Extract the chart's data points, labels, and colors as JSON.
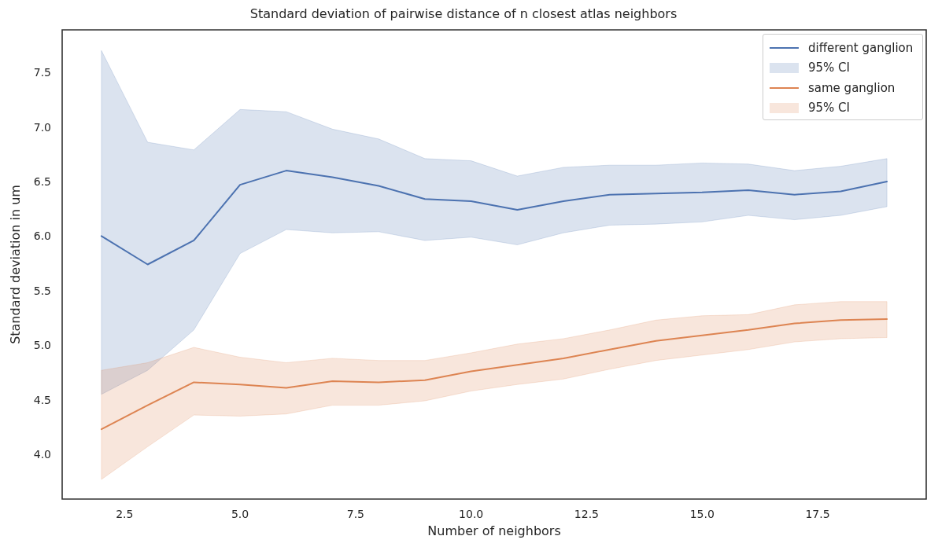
{
  "chart_data": {
    "type": "line",
    "title": "Standard deviation of pairwise distance of n closest atlas neighbors",
    "xlabel": "Number of neighbors",
    "ylabel": "Standard deviation in um",
    "annotations": [
      "95% CI",
      "95% CI"
    ],
    "x": [
      2,
      3,
      4,
      5,
      6,
      7,
      8,
      9,
      10,
      11,
      12,
      13,
      14,
      15,
      16,
      17,
      18,
      19
    ],
    "series": [
      {
        "name": "different ganglion",
        "color": "#4c72b0",
        "values": [
          6.0,
          5.74,
          5.96,
          6.47,
          6.6,
          6.54,
          6.46,
          6.34,
          6.32,
          6.24,
          6.32,
          6.38,
          6.39,
          6.4,
          6.42,
          6.38,
          6.41,
          6.5
        ],
        "lower": [
          4.55,
          4.77,
          5.14,
          5.84,
          6.06,
          6.03,
          6.04,
          5.96,
          5.99,
          5.92,
          6.03,
          6.1,
          6.11,
          6.13,
          6.19,
          6.15,
          6.19,
          6.27
        ],
        "upper": [
          7.7,
          6.86,
          6.79,
          7.16,
          7.14,
          6.98,
          6.89,
          6.71,
          6.69,
          6.55,
          6.63,
          6.65,
          6.65,
          6.67,
          6.66,
          6.6,
          6.64,
          6.71
        ]
      },
      {
        "name": "same ganglion",
        "color": "#dd8452",
        "values": [
          4.23,
          4.45,
          4.66,
          4.64,
          4.61,
          4.67,
          4.66,
          4.68,
          4.76,
          4.82,
          4.88,
          4.96,
          5.04,
          5.09,
          5.14,
          5.2,
          5.23,
          5.24
        ],
        "lower": [
          3.77,
          4.07,
          4.36,
          4.35,
          4.37,
          4.45,
          4.45,
          4.49,
          4.58,
          4.64,
          4.69,
          4.78,
          4.86,
          4.91,
          4.96,
          5.03,
          5.06,
          5.07
        ],
        "upper": [
          4.77,
          4.84,
          4.98,
          4.89,
          4.84,
          4.88,
          4.86,
          4.86,
          4.93,
          5.01,
          5.06,
          5.14,
          5.23,
          5.27,
          5.28,
          5.37,
          5.4,
          5.4
        ]
      }
    ],
    "xlim": [
      1.15,
      19.85
    ],
    "xticks": [
      {
        "value": 2.5,
        "label": "2.5"
      },
      {
        "value": 5,
        "label": "5.0"
      },
      {
        "value": 7.5,
        "label": "7.5"
      },
      {
        "value": 10,
        "label": "10.0"
      },
      {
        "value": 12.5,
        "label": "12.5"
      },
      {
        "value": 15,
        "label": "15.0"
      },
      {
        "value": 17.5,
        "label": "17.5"
      }
    ],
    "ylim": [
      3.59,
      7.89
    ],
    "yticks": [
      {
        "value": 4,
        "label": "4.0"
      },
      4.5,
      {
        "value": 5,
        "label": "5.0"
      },
      5.5,
      {
        "value": 6,
        "label": "6.0"
      },
      6.5,
      {
        "value": 7,
        "label": "7.0"
      },
      7.5
    ],
    "grid": false,
    "legend": "top right",
    "marker": "none",
    "line_style": "solid"
  }
}
